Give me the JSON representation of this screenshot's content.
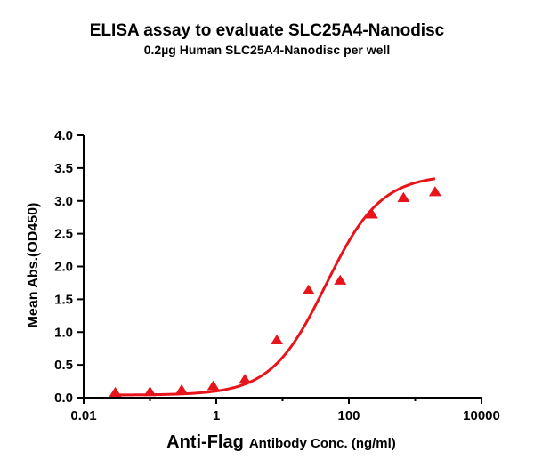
{
  "chart_data": {
    "type": "scatter",
    "title": "ELISA assay to evaluate SLC25A4-Nanodisc",
    "subtitle": "0.2µg Human SLC25A4-Nanodisc per well",
    "xlabel_main": "Anti-Flag",
    "xlabel_rest": "Antibody Conc. (ng/ml)",
    "ylabel": "Mean Abs.(OD450)",
    "xscale": "log",
    "xlim": [
      0.01,
      10000
    ],
    "ylim": [
      0,
      4.0
    ],
    "x_ticks": [
      "0.01",
      "1",
      "100",
      "10000"
    ],
    "y_ticks": [
      "0.0",
      "0.5",
      "1.0",
      "1.5",
      "2.0",
      "2.5",
      "3.0",
      "3.5",
      "4.0"
    ],
    "color": "#e8141b",
    "series": [
      {
        "marker": "triangle",
        "x": [
          0.03,
          0.1,
          0.3,
          0.9,
          2.7,
          8.2,
          24.7,
          74,
          222,
          667,
          2000
        ],
        "y": [
          0.07,
          0.08,
          0.11,
          0.17,
          0.27,
          0.87,
          1.63,
          1.78,
          2.79,
          3.04,
          3.13
        ]
      }
    ],
    "fit_curve": {
      "type": "4PL",
      "bottom": 0.04,
      "top": 3.4,
      "ec50": 45,
      "hill": 1.05
    }
  }
}
